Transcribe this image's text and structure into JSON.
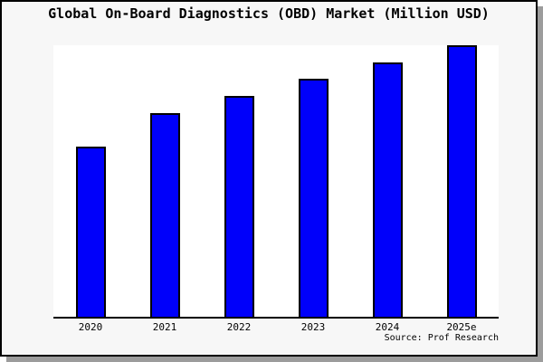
{
  "title": "Global On-Board Diagnostics (OBD) Market (Million USD)",
  "source_credit": "Source: Prof Research",
  "colors": {
    "bar_fill": "#0000fa",
    "bar_border": "#000000",
    "frame_background": "#f7f7f7",
    "plot_background": "#ffffff",
    "axis": "#000000",
    "shadow": "#9c9c9c",
    "text": "#000000"
  },
  "chart_data": {
    "type": "bar",
    "title": "Global On-Board Diagnostics (OBD) Market (Million USD)",
    "categories": [
      "2020",
      "2021",
      "2022",
      "2023",
      "2024",
      "2025e"
    ],
    "values": [
      62.7,
      75.0,
      81.3,
      87.7,
      93.7,
      100.0
    ],
    "value_scale_note": "y-axis unlabeled; values estimated from bar heights as relative index, 2025e = 100",
    "xlabel": "",
    "ylabel": "",
    "ylim": [
      0,
      100
    ],
    "grid": false,
    "legend": false,
    "annotations": [
      "Source: Prof Research"
    ]
  }
}
